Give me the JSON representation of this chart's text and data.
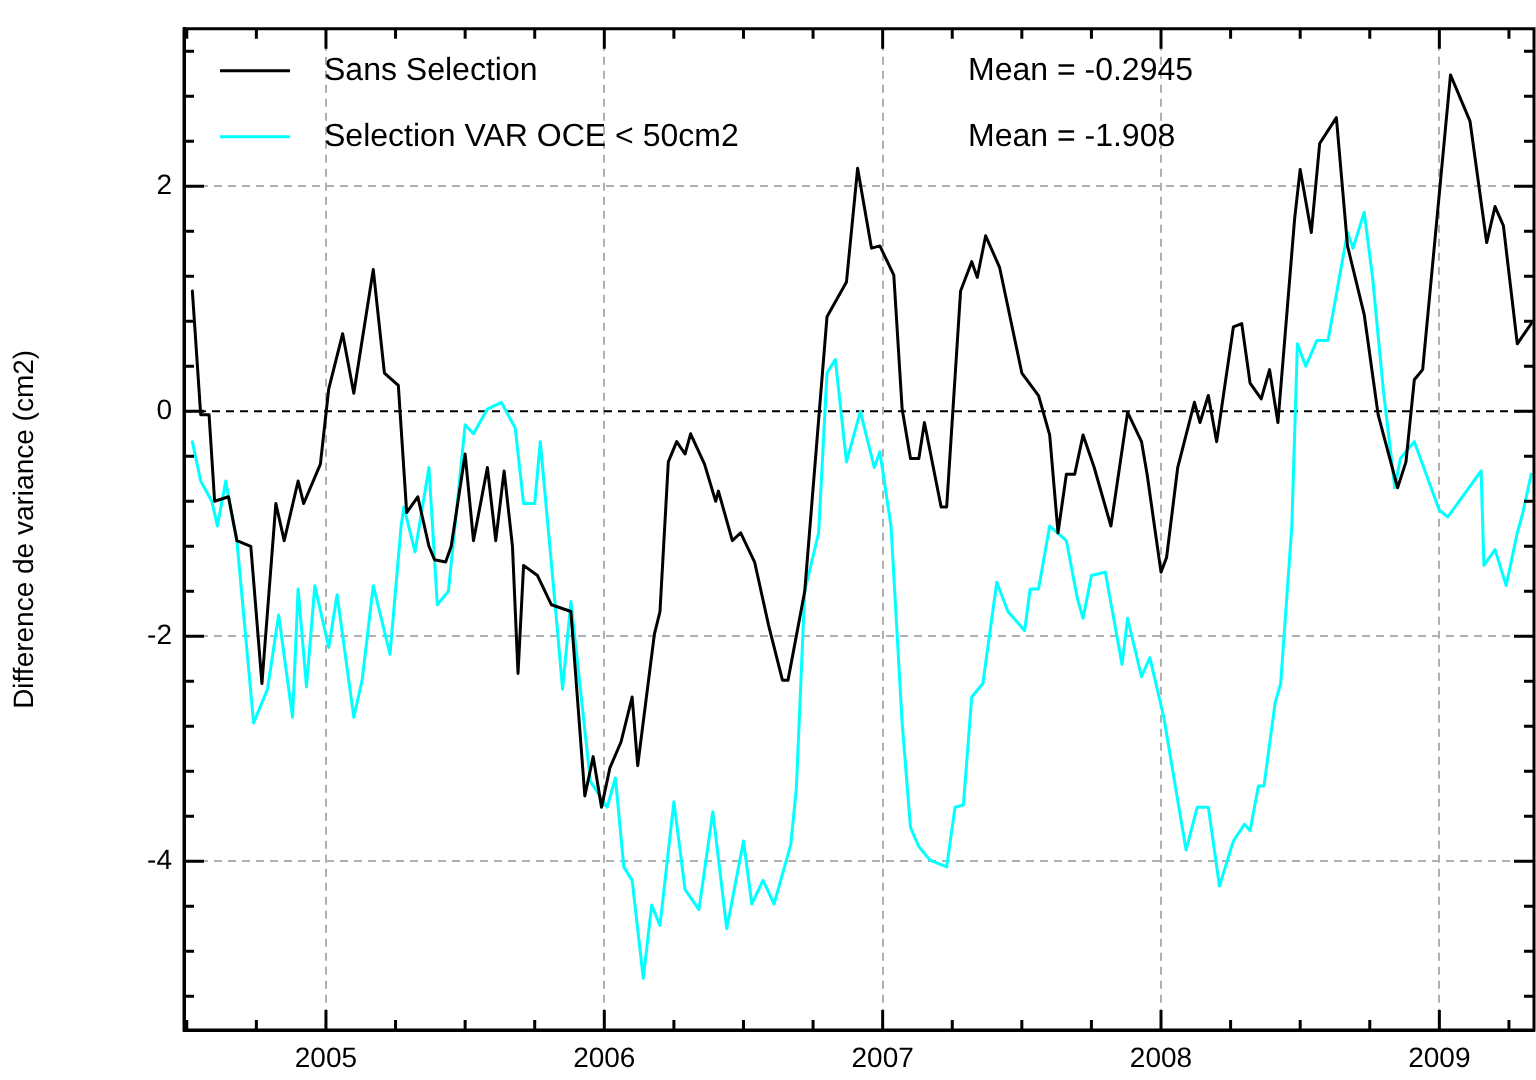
{
  "chart_data": {
    "type": "line",
    "ylabel": "Difference de variance (cm2)",
    "legend": "top left",
    "grid": true,
    "marker": "none",
    "line_style": "solid",
    "annotations": [
      "Mean = -0.2945",
      "Mean = -1.908"
    ],
    "xlim": [
      2004.49,
      2009.34
    ],
    "xticks": [
      {
        "value": 2004.5,
        "label": null
      },
      {
        "value": 2004.75,
        "label": null
      },
      {
        "value": 2005,
        "label": "2005"
      },
      {
        "value": 2005.25,
        "label": null
      },
      {
        "value": 2005.5,
        "label": null
      },
      {
        "value": 2005.75,
        "label": null
      },
      {
        "value": 2006,
        "label": "2006"
      },
      {
        "value": 2006.25,
        "label": null
      },
      {
        "value": 2006.5,
        "label": null
      },
      {
        "value": 2006.75,
        "label": null
      },
      {
        "value": 2007,
        "label": "2007"
      },
      {
        "value": 2007.25,
        "label": null
      },
      {
        "value": 2007.5,
        "label": null
      },
      {
        "value": 2007.75,
        "label": null
      },
      {
        "value": 2008,
        "label": "2008"
      },
      {
        "value": 2008.25,
        "label": null
      },
      {
        "value": 2008.5,
        "label": null
      },
      {
        "value": 2008.75,
        "label": null
      },
      {
        "value": 2009,
        "label": "2009"
      },
      {
        "value": 2009.25,
        "label": null
      }
    ],
    "ylim": [
      -5.5,
      3.4
    ],
    "yticks": [
      {
        "value": -5.2,
        "label": null
      },
      {
        "value": -4.8,
        "label": null
      },
      {
        "value": -4.4,
        "label": null
      },
      -4,
      {
        "value": -3.6,
        "label": null
      },
      {
        "value": -3.2,
        "label": null
      },
      {
        "value": -2.8,
        "label": null
      },
      {
        "value": -2.4,
        "label": null
      },
      -2,
      {
        "value": -1.6,
        "label": null
      },
      {
        "value": -1.2,
        "label": null
      },
      {
        "value": -0.8,
        "label": null
      },
      {
        "value": -0.4,
        "label": null
      },
      0,
      {
        "value": 0.4,
        "label": null
      },
      {
        "value": 0.8,
        "label": null
      },
      {
        "value": 1.2,
        "label": null
      },
      {
        "value": 1.6,
        "label": null
      },
      2,
      {
        "value": 2.4,
        "label": null
      },
      {
        "value": 2.8,
        "label": null
      },
      {
        "value": 3.2,
        "label": null
      }
    ],
    "ref_lines": [
      {
        "axis": "y",
        "value": 0,
        "color": "#000000",
        "line_style": "dashed"
      }
    ],
    "series": [
      {
        "name": "Sans Selection",
        "color": "#000000",
        "x": [
          2004.52,
          2004.55,
          2004.58,
          2004.6,
          2004.65,
          2004.68,
          2004.73,
          2004.77,
          2004.82,
          2004.85,
          2004.9,
          2004.92,
          2004.98,
          2005.01,
          2005.06,
          2005.1,
          2005.17,
          2005.21,
          2005.26,
          2005.29,
          2005.33,
          2005.37,
          2005.39,
          2005.43,
          2005.45,
          2005.5,
          2005.53,
          2005.58,
          2005.61,
          2005.64,
          2005.67,
          2005.69,
          2005.71,
          2005.76,
          2005.81,
          2005.88,
          2005.93,
          2005.96,
          2005.99,
          2006.02,
          2006.06,
          2006.1,
          2006.12,
          2006.18,
          2006.2,
          2006.23,
          2006.26,
          2006.29,
          2006.31,
          2006.36,
          2006.4,
          2006.41,
          2006.46,
          2006.49,
          2006.54,
          2006.59,
          2006.64,
          2006.66,
          2006.72,
          2006.8,
          2006.87,
          2006.91,
          2006.96,
          2006.99,
          2007.04,
          2007.07,
          2007.1,
          2007.13,
          2007.15,
          2007.21,
          2007.23,
          2007.28,
          2007.32,
          2007.34,
          2007.37,
          2007.42,
          2007.5,
          2007.56,
          2007.6,
          2007.63,
          2007.66,
          2007.69,
          2007.72,
          2007.76,
          2007.82,
          2007.88,
          2007.93,
          2007.95,
          2008.0,
          2008.02,
          2008.06,
          2008.12,
          2008.14,
          2008.17,
          2008.2,
          2008.26,
          2008.29,
          2008.32,
          2008.36,
          2008.39,
          2008.42,
          2008.48,
          2008.5,
          2008.54,
          2008.57,
          2008.63,
          2008.67,
          2008.73,
          2008.78,
          2008.85,
          2008.88,
          2008.91,
          2008.94,
          2009.0,
          2009.04,
          2009.11,
          2009.17,
          2009.2,
          2009.23,
          2009.28,
          2009.33
        ],
        "values": [
          1.07,
          -0.03,
          -0.03,
          -0.8,
          -0.76,
          -1.15,
          -1.2,
          -2.42,
          -0.82,
          -1.15,
          -0.62,
          -0.82,
          -0.47,
          0.2,
          0.69,
          0.16,
          1.26,
          0.34,
          0.23,
          -0.9,
          -0.76,
          -1.2,
          -1.32,
          -1.34,
          -1.2,
          -0.38,
          -1.15,
          -0.5,
          -1.15,
          -0.53,
          -1.2,
          -2.33,
          -1.37,
          -1.46,
          -1.72,
          -1.78,
          -3.42,
          -3.07,
          -3.52,
          -3.17,
          -2.94,
          -2.54,
          -3.15,
          -1.98,
          -1.78,
          -0.45,
          -0.27,
          -0.38,
          -0.2,
          -0.47,
          -0.8,
          -0.71,
          -1.15,
          -1.08,
          -1.34,
          -1.9,
          -2.39,
          -2.39,
          -1.6,
          0.84,
          1.15,
          2.16,
          1.45,
          1.47,
          1.21,
          0.02,
          -0.42,
          -0.42,
          -0.1,
          -0.85,
          -0.85,
          1.07,
          1.33,
          1.19,
          1.56,
          1.28,
          0.34,
          0.14,
          -0.21,
          -1.08,
          -0.56,
          -0.56,
          -0.21,
          -0.5,
          -1.02,
          -0.01,
          -0.27,
          -0.56,
          -1.43,
          -1.3,
          -0.5,
          0.08,
          -0.1,
          0.14,
          -0.27,
          0.75,
          0.78,
          0.25,
          0.11,
          0.37,
          -0.1,
          1.71,
          2.15,
          1.59,
          2.38,
          2.61,
          1.47,
          0.86,
          -0.03,
          -0.68,
          -0.45,
          0.28,
          0.37,
          1.94,
          2.99,
          2.58,
          1.5,
          1.82,
          1.65,
          0.6,
          0.78
        ]
      },
      {
        "name": "Selection VAR OCE < 50cm2",
        "color": "#00ffff",
        "x": [
          2004.52,
          2004.55,
          2004.59,
          2004.61,
          2004.64,
          2004.66,
          2004.68,
          2004.74,
          2004.79,
          2004.83,
          2004.88,
          2004.9,
          2004.93,
          2004.96,
          2005.01,
          2005.04,
          2005.1,
          2005.13,
          2005.17,
          2005.23,
          2005.27,
          2005.28,
          2005.32,
          2005.37,
          2005.4,
          2005.44,
          2005.5,
          2005.53,
          2005.58,
          2005.63,
          2005.68,
          2005.71,
          2005.75,
          2005.77,
          2005.83,
          2005.85,
          2005.88,
          2005.95,
          2006.01,
          2006.04,
          2006.07,
          2006.1,
          2006.14,
          2006.17,
          2006.2,
          2006.25,
          2006.29,
          2006.34,
          2006.39,
          2006.44,
          2006.5,
          2006.53,
          2006.57,
          2006.61,
          2006.67,
          2006.69,
          2006.72,
          2006.77,
          2006.8,
          2006.83,
          2006.87,
          2006.92,
          2006.97,
          2006.99,
          2007.03,
          2007.07,
          2007.1,
          2007.13,
          2007.17,
          2007.23,
          2007.26,
          2007.29,
          2007.32,
          2007.36,
          2007.41,
          2007.45,
          2007.51,
          2007.53,
          2007.56,
          2007.6,
          2007.66,
          2007.7,
          2007.72,
          2007.75,
          2007.8,
          2007.86,
          2007.88,
          2007.93,
          2007.96,
          2008.01,
          2008.09,
          2008.13,
          2008.17,
          2008.21,
          2008.26,
          2008.3,
          2008.32,
          2008.35,
          2008.37,
          2008.41,
          2008.43,
          2008.47,
          2008.49,
          2008.52,
          2008.56,
          2008.6,
          2008.67,
          2008.69,
          2008.73,
          2008.76,
          2008.8,
          2008.84,
          2008.86,
          2008.91,
          2009.0,
          2009.03,
          2009.15,
          2009.16,
          2009.2,
          2009.24,
          2009.28,
          2009.3,
          2009.33
        ],
        "values": [
          -0.27,
          -0.62,
          -0.8,
          -1.02,
          -0.62,
          -0.9,
          -1.15,
          -2.77,
          -2.47,
          -1.81,
          -2.72,
          -1.58,
          -2.45,
          -1.55,
          -2.1,
          -1.63,
          -2.72,
          -2.39,
          -1.55,
          -2.16,
          -1.02,
          -0.85,
          -1.25,
          -0.5,
          -1.72,
          -1.6,
          -0.12,
          -0.2,
          0.02,
          0.08,
          -0.15,
          -0.82,
          -0.82,
          -0.27,
          -1.9,
          -2.47,
          -1.69,
          -3.29,
          -3.52,
          -3.26,
          -4.05,
          -4.17,
          -5.04,
          -4.39,
          -4.57,
          -3.47,
          -4.25,
          -4.43,
          -3.56,
          -4.6,
          -3.82,
          -4.38,
          -4.17,
          -4.38,
          -3.85,
          -3.35,
          -1.6,
          -1.08,
          0.34,
          0.46,
          -0.45,
          0.0,
          -0.5,
          -0.36,
          -1.02,
          -2.77,
          -3.7,
          -3.87,
          -3.99,
          -4.05,
          -3.52,
          -3.5,
          -2.54,
          -2.42,
          -1.52,
          -1.78,
          -1.95,
          -1.58,
          -1.58,
          -1.02,
          -1.15,
          -1.67,
          -1.84,
          -1.46,
          -1.43,
          -2.25,
          -1.84,
          -2.36,
          -2.19,
          -2.72,
          -3.9,
          -3.52,
          -3.52,
          -4.22,
          -3.82,
          -3.67,
          -3.73,
          -3.33,
          -3.33,
          -2.59,
          -2.42,
          -1.02,
          0.6,
          0.4,
          0.63,
          0.63,
          1.59,
          1.45,
          1.77,
          1.19,
          0.16,
          -0.68,
          -0.42,
          -0.27,
          -0.88,
          -0.94,
          -0.53,
          -1.37,
          -1.23,
          -1.55,
          -1.08,
          -0.9,
          -0.56
        ]
      }
    ]
  }
}
